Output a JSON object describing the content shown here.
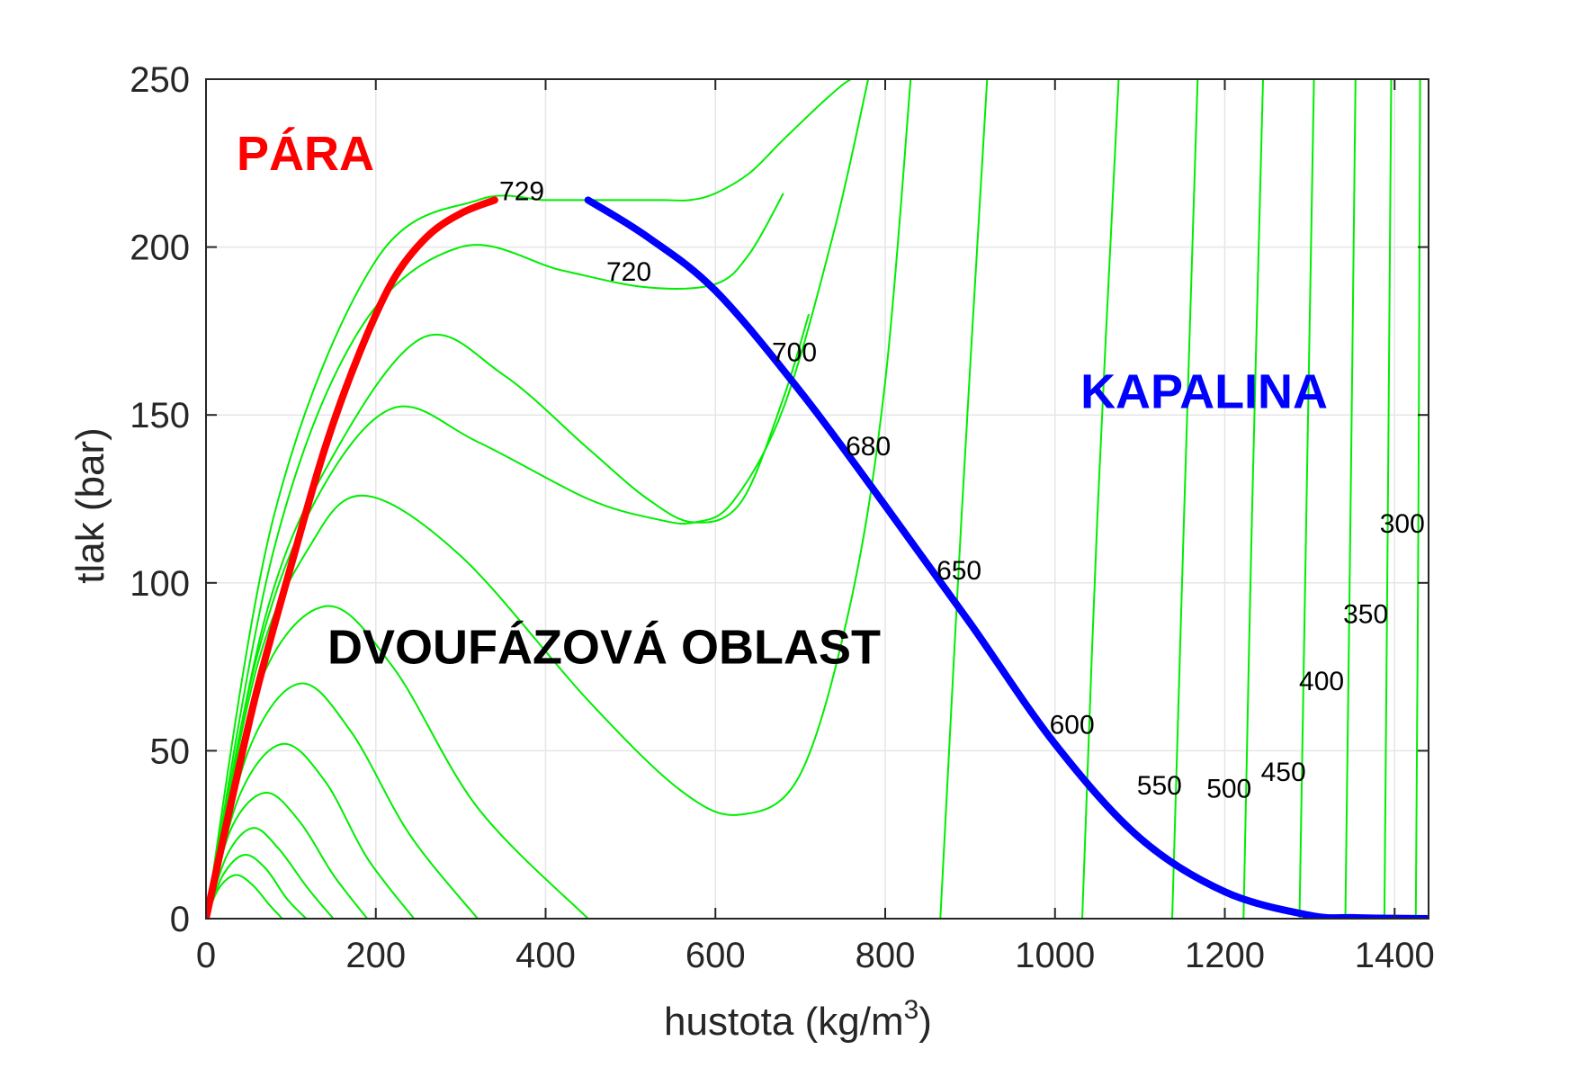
{
  "chart_data": {
    "type": "line",
    "title": "",
    "xlabel": "hustota (kg/m",
    "xlabel_sup": "3",
    "xlabel_end": ")",
    "ylabel": "tlak (bar)",
    "xlim": [
      0,
      1440
    ],
    "ylim": [
      0,
      250
    ],
    "grid": true,
    "x_ticks": [
      0,
      200,
      400,
      600,
      800,
      1000,
      1200,
      1400
    ],
    "y_ticks": [
      0,
      50,
      100,
      150,
      200,
      250
    ],
    "x_tick_labels": [
      "0",
      "200",
      "400",
      "600",
      "800",
      "1000",
      "1200",
      "1400"
    ],
    "y_tick_labels": [
      "0",
      "50",
      "100",
      "150",
      "200",
      "250"
    ],
    "colors": {
      "isotherm": "#00ee00",
      "vapor": "#ff0000",
      "liquid": "#0000ff",
      "axes": "#262626",
      "grid": "#e6e6e6"
    },
    "region_labels": [
      {
        "text": "PÁRA",
        "color": "#ff0000",
        "x": 36,
        "y": 223
      },
      {
        "text": "KAPALINA",
        "color": "#0000ff",
        "x": 1030,
        "y": 152
      },
      {
        "text": "DVOUFÁZOVÁ OBLAST",
        "color": "#000000",
        "x": 143,
        "y": 76
      }
    ],
    "isotherm_labels": [
      {
        "text": "729",
        "x": 372,
        "y": 214
      },
      {
        "text": "720",
        "x": 498,
        "y": 190
      },
      {
        "text": "700",
        "x": 693,
        "y": 166
      },
      {
        "text": "680",
        "x": 780,
        "y": 138
      },
      {
        "text": "650",
        "x": 887,
        "y": 101
      },
      {
        "text": "600",
        "x": 1020,
        "y": 55
      },
      {
        "text": "550",
        "x": 1123,
        "y": 37
      },
      {
        "text": "500",
        "x": 1205,
        "y": 36
      },
      {
        "text": "450",
        "x": 1269,
        "y": 41
      },
      {
        "text": "400",
        "x": 1314,
        "y": 68
      },
      {
        "text": "350",
        "x": 1366,
        "y": 88
      },
      {
        "text": "300",
        "x": 1409,
        "y": 115
      }
    ],
    "series": [
      {
        "name": "PÁRA",
        "kind": "vapor",
        "x": [
          0,
          30,
          60,
          100,
          140,
          180,
          220,
          260,
          300,
          340
        ],
        "y": [
          0,
          35,
          68,
          105,
          140,
          168,
          190,
          203,
          210,
          214
        ]
      },
      {
        "name": "KAPALINA",
        "kind": "liquid",
        "x": [
          450,
          520,
          600,
          700,
          800,
          900,
          1000,
          1100,
          1200,
          1300,
          1350,
          1400,
          1440
        ],
        "y": [
          214,
          203,
          187,
          157,
          123,
          88,
          52,
          24,
          8,
          1,
          0.3,
          0.1,
          0
        ]
      },
      {
        "kind": "isotherm",
        "x": [
          0,
          15,
          35,
          55,
          75,
          90
        ],
        "y": [
          0,
          9,
          13,
          10,
          4,
          0
        ]
      },
      {
        "kind": "isotherm",
        "x": [
          0,
          20,
          45,
          70,
          95,
          118
        ],
        "y": [
          0,
          13,
          19,
          15,
          6,
          0
        ]
      },
      {
        "kind": "isotherm",
        "x": [
          0,
          25,
          55,
          85,
          120,
          150
        ],
        "y": [
          0,
          19,
          27,
          21,
          9,
          0
        ]
      },
      {
        "kind": "isotherm",
        "x": [
          0,
          30,
          70,
          110,
          150,
          190
        ],
        "y": [
          0,
          27,
          37.5,
          29,
          13,
          0
        ]
      },
      {
        "kind": "isotherm",
        "x": [
          0,
          40,
          90,
          140,
          190,
          245
        ],
        "y": [
          0,
          37,
          52,
          41,
          18,
          0
        ]
      },
      {
        "kind": "isotherm",
        "x": [
          0,
          50,
          110,
          170,
          240,
          320
        ],
        "y": [
          0,
          50,
          70,
          56,
          25,
          0
        ]
      },
      {
        "kind": "isotherm",
        "x": [
          0,
          60,
          140,
          220,
          320,
          450
        ],
        "y": [
          0,
          68,
          93,
          75,
          33,
          0
        ]
      },
      {
        "kind": "isotherm",
        "x": [
          0,
          60,
          120,
          185,
          300,
          450,
          560,
          630,
          700,
          760,
          800,
          830
        ],
        "y": [
          0,
          75,
          110,
          126,
          108,
          65,
          38,
          31,
          43,
          95,
          160,
          250
        ]
      },
      {
        "kind": "isotherm",
        "x": [
          0,
          60,
          130,
          220,
          320,
          450,
          530,
          575,
          620,
          680,
          740,
          780
        ],
        "y": [
          0,
          78,
          125,
          152,
          142,
          125,
          119,
          118,
          124,
          152,
          205,
          250
        ]
      },
      {
        "kind": "isotherm",
        "x": [
          0,
          70,
          150,
          255,
          350,
          450,
          520,
          575,
          630,
          680,
          710
        ],
        "y": [
          0,
          90,
          138,
          173,
          162,
          140,
          125,
          118,
          124,
          155,
          180
        ]
      },
      {
        "kind": "isotherm",
        "x": [
          0,
          80,
          180,
          300,
          420,
          520,
          600,
          640,
          680
        ],
        "y": [
          0,
          110,
          175,
          200,
          193,
          188,
          189,
          198,
          216
        ]
      },
      {
        "kind": "isotherm",
        "x": [
          0,
          80,
          200,
          320,
          400,
          460,
          500,
          540,
          570,
          600,
          640,
          680,
          730,
          760,
          780
        ],
        "y": [
          0,
          120,
          196,
          214,
          214,
          214,
          214,
          214,
          214,
          216,
          222,
          232,
          244,
          250,
          250
        ]
      },
      {
        "kind": "isotherm",
        "x": [
          865,
          890,
          920
        ],
        "y": [
          0,
          120,
          250
        ]
      },
      {
        "kind": "isotherm",
        "x": [
          1032,
          1050,
          1075
        ],
        "y": [
          0,
          120,
          250
        ]
      },
      {
        "kind": "isotherm",
        "x": [
          1138,
          1152,
          1168
        ],
        "y": [
          0,
          120,
          250
        ]
      },
      {
        "kind": "isotherm",
        "x": [
          1222,
          1232,
          1245
        ],
        "y": [
          0,
          120,
          250
        ]
      },
      {
        "kind": "isotherm",
        "x": [
          1288,
          1296,
          1305
        ],
        "y": [
          0,
          120,
          250
        ]
      },
      {
        "kind": "isotherm",
        "x": [
          1342,
          1348,
          1354
        ],
        "y": [
          0,
          120,
          250
        ]
      },
      {
        "kind": "isotherm",
        "x": [
          1388,
          1392,
          1396
        ],
        "y": [
          0,
          120,
          250
        ]
      },
      {
        "kind": "isotherm",
        "x": [
          1425,
          1428,
          1430
        ],
        "y": [
          0,
          120,
          250
        ]
      }
    ]
  }
}
